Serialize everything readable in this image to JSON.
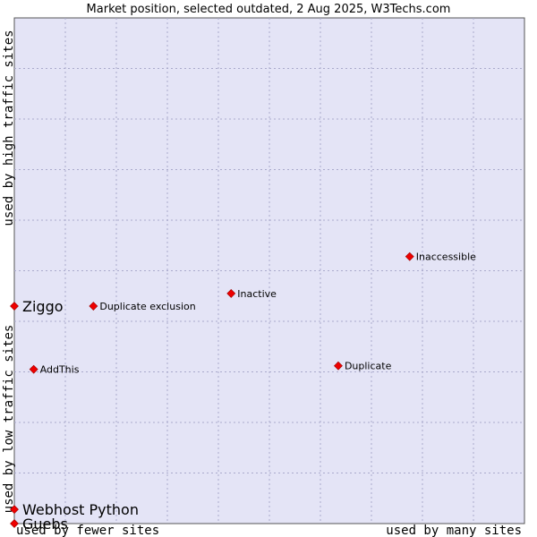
{
  "chart_data": {
    "type": "scatter",
    "title": "Market position, selected outdated, 2 Aug 2025, W3Techs.com",
    "xlabel_left": "used by fewer sites",
    "xlabel_right": "used by many sites",
    "ylabel_low": "used by low traffic sites",
    "ylabel_high": "used by high traffic sites",
    "xlim": [
      0,
      100
    ],
    "ylim": [
      0,
      100
    ],
    "grid": true,
    "points": [
      {
        "label": "Ziggo",
        "x": 0.0,
        "y": 43.0,
        "size": "large"
      },
      {
        "label": "Duplicate exclusion",
        "x": 15.5,
        "y": 43.0,
        "size": "small"
      },
      {
        "label": "Inactive",
        "x": 42.5,
        "y": 45.5,
        "size": "small"
      },
      {
        "label": "Inaccessible",
        "x": 77.5,
        "y": 52.8,
        "size": "small"
      },
      {
        "label": "AddThis",
        "x": 3.8,
        "y": 30.5,
        "size": "small"
      },
      {
        "label": "Duplicate",
        "x": 63.5,
        "y": 31.2,
        "size": "small"
      },
      {
        "label": "Webhost Python",
        "x": 0.0,
        "y": 2.8,
        "size": "large"
      },
      {
        "label": "Guebs",
        "x": 0.0,
        "y": 0.0,
        "size": "large"
      }
    ]
  }
}
